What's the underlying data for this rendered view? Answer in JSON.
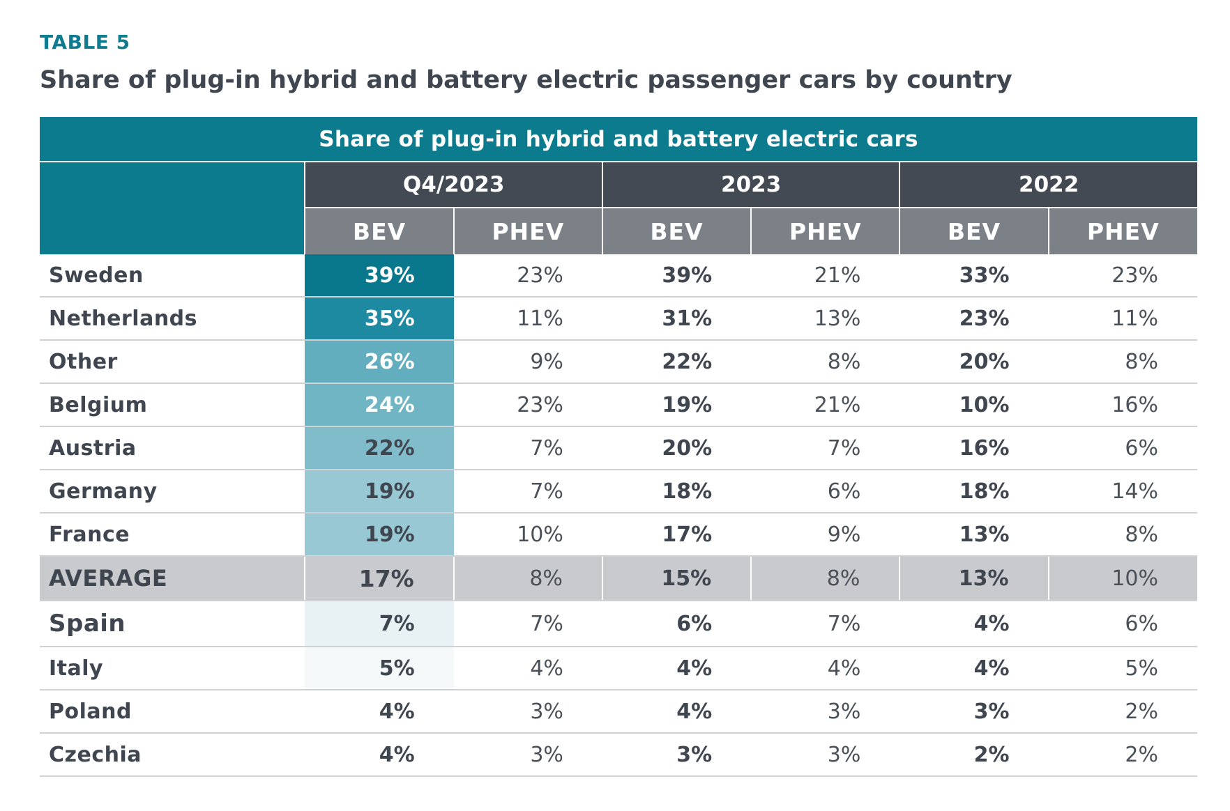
{
  "header": {
    "table_label": "TABLE 5",
    "title": "Share of plug-in hybrid and battery electric passenger cars by country"
  },
  "table": {
    "banner": "Share of plug-in hybrid and battery electric cars",
    "periods": [
      "Q4/2023",
      "2023",
      "2022"
    ],
    "metrics": [
      "BEV",
      "PHEV",
      "BEV",
      "PHEV",
      "BEV",
      "PHEV"
    ],
    "rows": [
      {
        "country": "Sweden",
        "values": [
          "39%",
          "23%",
          "39%",
          "21%",
          "33%",
          "23%"
        ]
      },
      {
        "country": "Netherlands",
        "values": [
          "35%",
          "11%",
          "31%",
          "13%",
          "23%",
          "11%"
        ]
      },
      {
        "country": "Other",
        "values": [
          "26%",
          "9%",
          "22%",
          "8%",
          "20%",
          "8%"
        ]
      },
      {
        "country": "Belgium",
        "values": [
          "24%",
          "23%",
          "19%",
          "21%",
          "10%",
          "16%"
        ]
      },
      {
        "country": "Austria",
        "values": [
          "22%",
          "7%",
          "20%",
          "7%",
          "16%",
          "6%"
        ]
      },
      {
        "country": "Germany",
        "values": [
          "19%",
          "7%",
          "18%",
          "6%",
          "18%",
          "14%"
        ]
      },
      {
        "country": "France",
        "values": [
          "19%",
          "10%",
          "17%",
          "9%",
          "13%",
          "8%"
        ]
      },
      {
        "country": "AVERAGE",
        "values": [
          "17%",
          "8%",
          "15%",
          "8%",
          "13%",
          "10%"
        ]
      },
      {
        "country": "Spain",
        "values": [
          "7%",
          "7%",
          "6%",
          "7%",
          "4%",
          "6%"
        ]
      },
      {
        "country": "Italy",
        "values": [
          "5%",
          "4%",
          "4%",
          "4%",
          "4%",
          "5%"
        ]
      },
      {
        "country": "Poland",
        "values": [
          "4%",
          "3%",
          "4%",
          "3%",
          "3%",
          "2%"
        ]
      },
      {
        "country": "Czechia",
        "values": [
          "4%",
          "3%",
          "3%",
          "3%",
          "2%",
          "2%"
        ]
      }
    ]
  },
  "colors": {
    "accent_teal": "#0d7b8e",
    "header_dark": "#434a53",
    "header_gray": "#7c8087",
    "average_row": "#c9cacd",
    "text": "#3f4650"
  }
}
